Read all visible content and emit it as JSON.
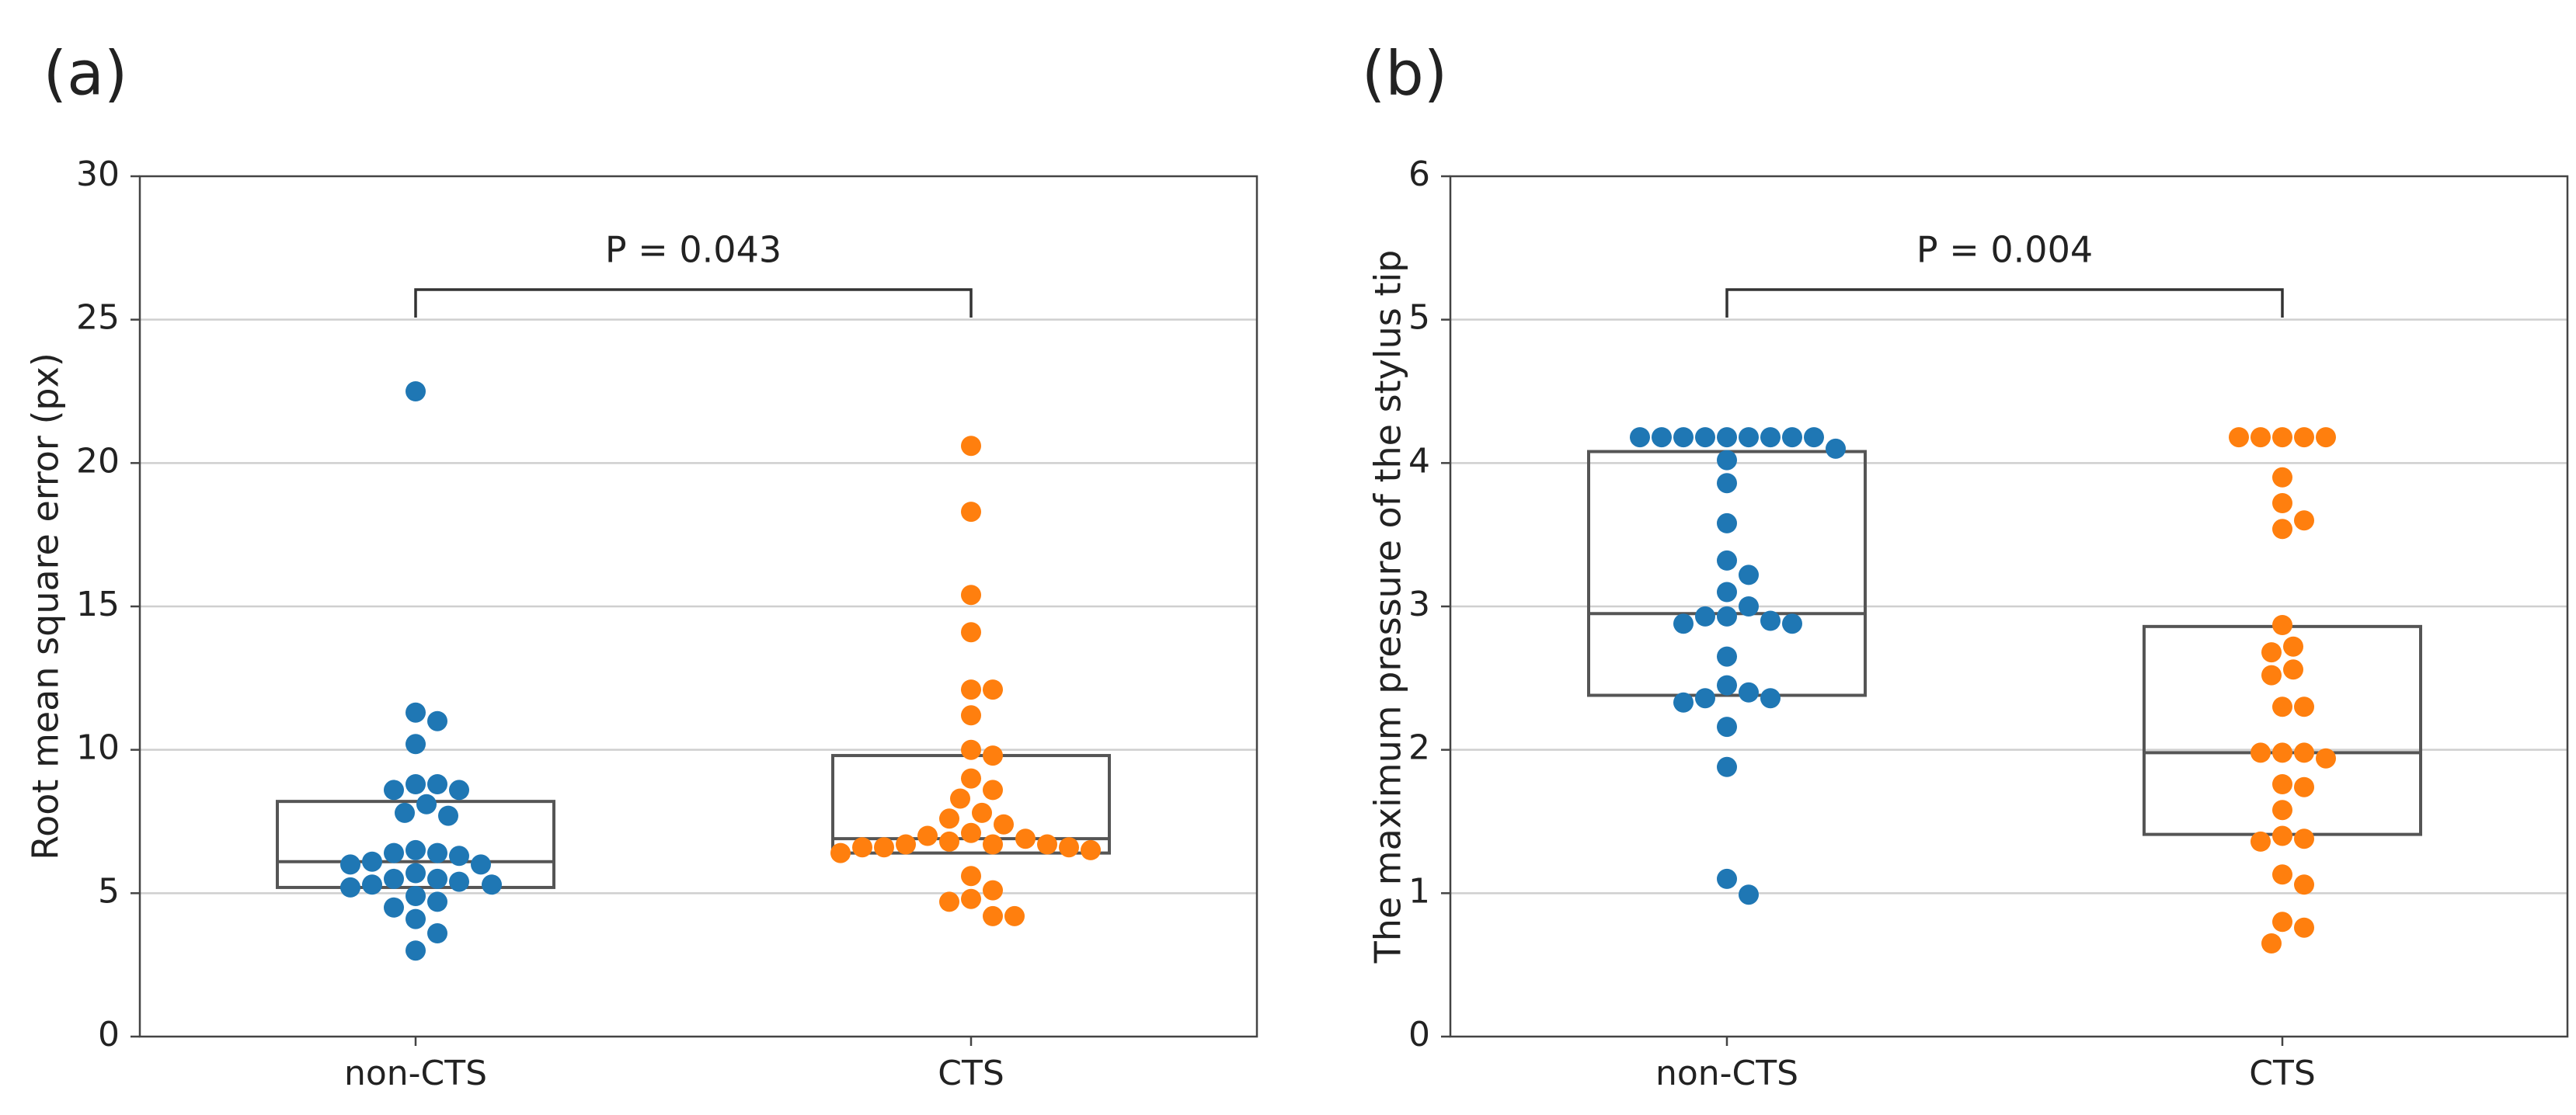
{
  "colors": {
    "non_cts": "#1f77b4",
    "cts": "#ff7f0e",
    "grid": "#cfcfcf",
    "box": "#555555"
  },
  "chart_data": [
    {
      "panel_label": "(a)",
      "type": "scatter",
      "subtype": "swarm-with-box",
      "title": "",
      "xlabel": "",
      "ylabel": "Root mean square error (px)",
      "ylim": [
        0,
        30
      ],
      "yticks": [
        "0",
        "5",
        "10",
        "15",
        "20",
        "25",
        "30"
      ],
      "grid": "horizontal",
      "categories": [
        "non-CTS",
        "CTS"
      ],
      "annotation": "P = 0.043",
      "series": [
        {
          "name": "non-CTS",
          "color": "#1f77b4",
          "box": {
            "q1": 5.2,
            "median": 6.1,
            "q3": 8.2
          },
          "values": [
            22.5,
            11.3,
            11.0,
            10.2,
            8.8,
            8.8,
            8.6,
            8.6,
            8.1,
            7.8,
            7.7,
            6.5,
            6.4,
            6.4,
            6.3,
            6.1,
            6.0,
            6.0,
            5.7,
            5.5,
            5.5,
            5.4,
            5.3,
            5.3,
            5.2,
            4.9,
            4.7,
            4.5,
            4.1,
            3.6,
            3.0
          ]
        },
        {
          "name": "CTS",
          "color": "#ff7f0e",
          "box": {
            "q1": 6.4,
            "median": 6.9,
            "q3": 9.8
          },
          "values": [
            20.6,
            18.3,
            15.4,
            14.1,
            12.1,
            12.1,
            11.2,
            10.0,
            9.8,
            9.0,
            8.6,
            8.3,
            7.8,
            7.6,
            7.4,
            7.1,
            7.0,
            6.9,
            6.8,
            6.7,
            6.7,
            6.7,
            6.6,
            6.6,
            6.6,
            6.5,
            6.4,
            5.6,
            5.1,
            4.8,
            4.7,
            4.2,
            4.2
          ]
        }
      ]
    },
    {
      "panel_label": "(b)",
      "type": "scatter",
      "subtype": "swarm-with-box",
      "title": "",
      "xlabel": "",
      "ylabel": "The maximum pressure of the stylus tip",
      "ylim": [
        0,
        6
      ],
      "yticks": [
        "0",
        "1",
        "2",
        "3",
        "4",
        "5",
        "6"
      ],
      "grid": "horizontal",
      "categories": [
        "non-CTS",
        "CTS"
      ],
      "annotation": "P = 0.004",
      "series": [
        {
          "name": "non-CTS",
          "color": "#1f77b4",
          "box": {
            "q1": 2.38,
            "median": 2.95,
            "q3": 4.08
          },
          "values": [
            4.18,
            4.18,
            4.18,
            4.18,
            4.18,
            4.18,
            4.18,
            4.18,
            4.18,
            4.1,
            4.02,
            3.86,
            3.58,
            3.32,
            3.22,
            3.1,
            3.0,
            2.93,
            2.93,
            2.9,
            2.88,
            2.88,
            2.65,
            2.45,
            2.4,
            2.36,
            2.36,
            2.33,
            2.16,
            1.88,
            1.1,
            0.99
          ]
        },
        {
          "name": "CTS",
          "color": "#ff7f0e",
          "box": {
            "q1": 1.41,
            "median": 1.98,
            "q3": 2.86
          },
          "values": [
            4.18,
            4.18,
            4.18,
            4.18,
            4.18,
            3.9,
            3.72,
            3.6,
            3.54,
            2.87,
            2.72,
            2.68,
            2.56,
            2.52,
            2.3,
            2.3,
            1.98,
            1.98,
            1.98,
            1.94,
            1.76,
            1.74,
            1.58,
            1.4,
            1.38,
            1.36,
            1.13,
            1.06,
            0.8,
            0.76,
            0.65
          ]
        }
      ]
    }
  ]
}
